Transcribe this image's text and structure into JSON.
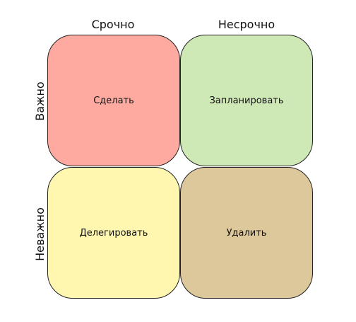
{
  "columns": {
    "urgent": "Срочно",
    "not_urgent": "Несрочно"
  },
  "rows": {
    "important": "Важно",
    "not_important": "Неважно"
  },
  "quadrants": {
    "do": {
      "label": "Сделать",
      "color": "#ffaaa0"
    },
    "schedule": {
      "label": "Запланировать",
      "color": "#cfe9b6"
    },
    "delegate": {
      "label": "Делегировать",
      "color": "#fff7b0"
    },
    "delete": {
      "label": "Удалить",
      "color": "#ddc89c"
    }
  }
}
